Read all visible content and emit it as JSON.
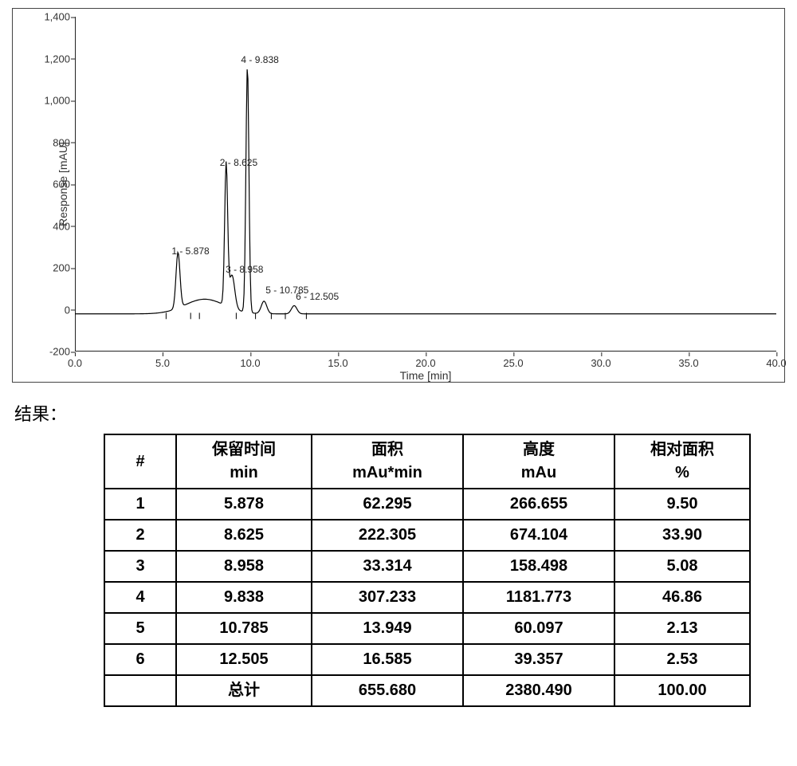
{
  "chart": {
    "type": "chromatogram-line",
    "background_color": "#ffffff",
    "axis_color": "#222222",
    "trace_color": "#000000",
    "x_title": "Time [min]",
    "y_title": "Response [mAU]",
    "xlim": [
      0,
      40
    ],
    "ylim": [
      -200,
      1400
    ],
    "x_ticks": [
      "0.0",
      "5.0",
      "10.0",
      "15.0",
      "20.0",
      "25.0",
      "30.0",
      "35.0",
      "40.0"
    ],
    "y_ticks": [
      "-200",
      "0",
      "200",
      "400",
      "600",
      "800",
      "1,000",
      "1,200",
      "1,400"
    ],
    "tick_fontsize": 13,
    "label_fontsize": 14,
    "peak_label_fontsize": 12,
    "peaks": [
      {
        "id": 1,
        "rt": 5.878,
        "height": 266.655,
        "label": "1 - 5.878"
      },
      {
        "id": 2,
        "rt": 8.625,
        "height": 674.104,
        "label": "2 - 8.625"
      },
      {
        "id": 3,
        "rt": 8.958,
        "height": 158.498,
        "label": "3 - 8.958"
      },
      {
        "id": 4,
        "rt": 9.838,
        "height": 1181.773,
        "label": "4 - 9.838"
      },
      {
        "id": 5,
        "rt": 10.785,
        "height": 60.097,
        "label": "5 - 10.785"
      },
      {
        "id": 6,
        "rt": 12.505,
        "height": 39.357,
        "label": "6 - 12.505"
      }
    ],
    "baseline_y": -20
  },
  "results_label": "结果：",
  "table": {
    "columns": [
      {
        "h1": "#",
        "h2": ""
      },
      {
        "h1": "保留时间",
        "h2": "min"
      },
      {
        "h1": "面积",
        "h2": "mAu*min"
      },
      {
        "h1": "高度",
        "h2": "mAu"
      },
      {
        "h1": "相对面积",
        "h2": "%"
      }
    ],
    "rows": [
      [
        "1",
        "5.878",
        "62.295",
        "266.655",
        "9.50"
      ],
      [
        "2",
        "8.625",
        "222.305",
        "674.104",
        "33.90"
      ],
      [
        "3",
        "8.958",
        "33.314",
        "158.498",
        "5.08"
      ],
      [
        "4",
        "9.838",
        "307.233",
        "1181.773",
        "46.86"
      ],
      [
        "5",
        "10.785",
        "13.949",
        "60.097",
        "2.13"
      ],
      [
        "6",
        "12.505",
        "16.585",
        "39.357",
        "2.53"
      ],
      [
        "",
        "总计",
        "655.680",
        "2380.490",
        "100.00"
      ]
    ]
  }
}
